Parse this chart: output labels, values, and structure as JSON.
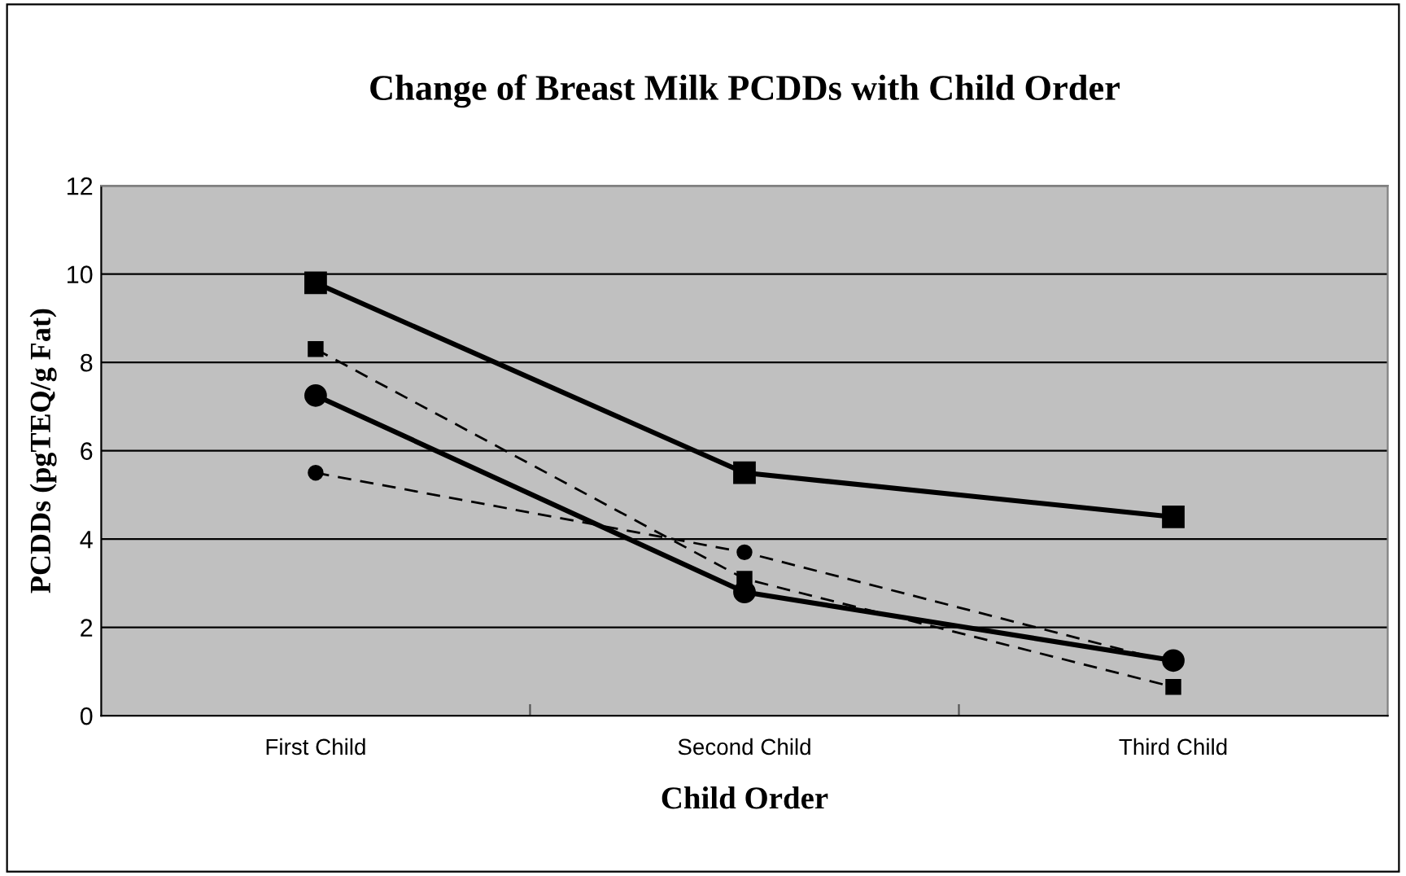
{
  "chart_data": {
    "type": "line",
    "title": "Change of Breast Milk PCDDs with Child Order",
    "xlabel": "Child Order",
    "ylabel": "PCDDs (pgTEQ/g Fat)",
    "categories": [
      "First Child",
      "Second Child",
      "Third Child"
    ],
    "series": [
      {
        "color": "#000000",
        "marker": "square",
        "line_style": "solid",
        "values": [
          9.8,
          5.5,
          4.5
        ]
      },
      {
        "color": "#000000",
        "marker": "square",
        "line_style": "dashed",
        "values": [
          8.3,
          3.1,
          0.65
        ]
      },
      {
        "color": "#000000",
        "marker": "circle",
        "line_style": "solid",
        "values": [
          7.25,
          2.8,
          1.25
        ]
      },
      {
        "color": "#000000",
        "marker": "circle",
        "line_style": "dashed",
        "values": [
          5.5,
          3.7,
          1.2
        ]
      }
    ],
    "ylim": [
      0,
      12
    ],
    "yticks": [
      0,
      2,
      4,
      6,
      8,
      10,
      12
    ],
    "grid": "y",
    "legend": false
  }
}
